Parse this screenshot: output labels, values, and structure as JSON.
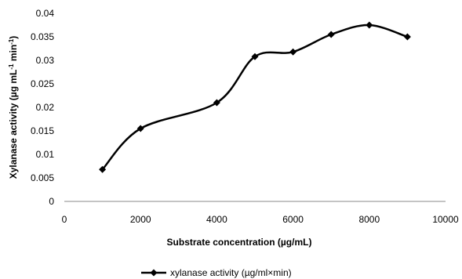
{
  "chart_data": {
    "type": "line",
    "title": "",
    "xlabel": "Substrate concentration (µg/mL)",
    "ylabel": "Xylanase activity (µg mL",
    "ylabel_sup1": "-1",
    "ylabel_mid": " min",
    "ylabel_sup2": "-1",
    "ylabel_end": ")",
    "xlim": [
      0,
      10000
    ],
    "ylim": [
      0,
      0.04
    ],
    "xticks": [
      0,
      2000,
      4000,
      6000,
      8000,
      10000
    ],
    "xtick_labels": [
      "0",
      "2000",
      "4000",
      "6000",
      "8000",
      "10000"
    ],
    "yticks": [
      0,
      0.005,
      0.01,
      0.015,
      0.02,
      0.025,
      0.03,
      0.035,
      0.04
    ],
    "ytick_labels": [
      "0",
      "0.005",
      "0.01",
      "0.015",
      "0.02",
      "0.025",
      "0.03",
      "0.035",
      "0.04"
    ],
    "grid": false,
    "legend_position": "bottom",
    "series": [
      {
        "name": "xylanase activity (µg/ml×min)",
        "color": "#000000",
        "marker": "diamond",
        "smooth": true,
        "x": [
          1000,
          2000,
          4000,
          5000,
          6000,
          7000,
          8000,
          9000
        ],
        "y": [
          0.0068,
          0.0155,
          0.021,
          0.0308,
          0.0318,
          0.0355,
          0.0375,
          0.035
        ]
      }
    ]
  }
}
